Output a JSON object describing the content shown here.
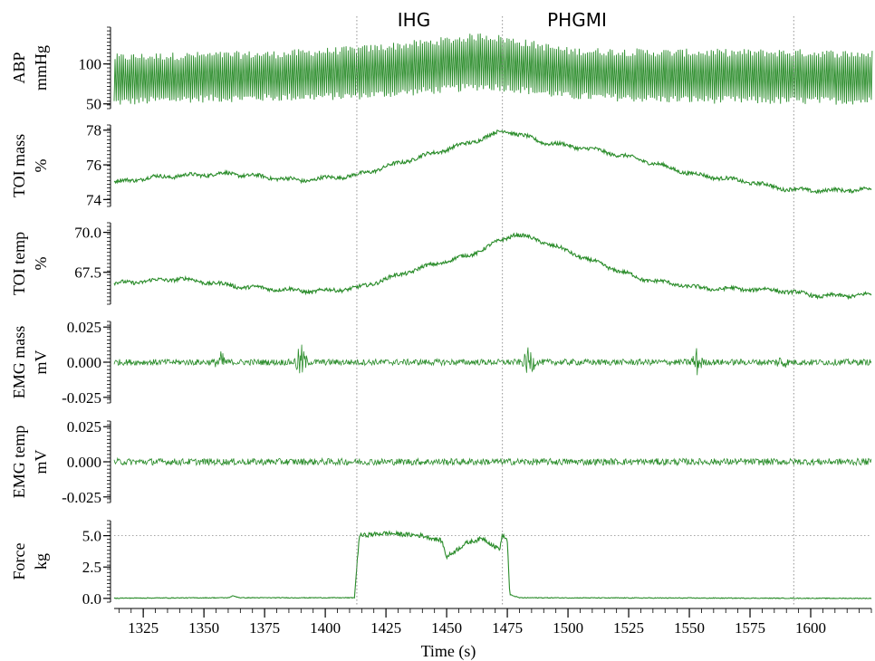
{
  "chart_data": {
    "type": "line",
    "series_color": "#2a8c2a",
    "x_axis": {
      "label": "Time (s)",
      "range": [
        1313,
        1625
      ],
      "tick_values": [
        1325,
        1350,
        1375,
        1400,
        1425,
        1450,
        1475,
        1500,
        1525,
        1550,
        1575,
        1600
      ]
    },
    "phase_markers": [
      {
        "label": "IHG",
        "x": 1413
      },
      {
        "label": "PHGMI",
        "x": 1473
      }
    ],
    "end_marker_x": 1593,
    "panels": [
      {
        "label_line1": "ABP",
        "label_line2": "mmHg",
        "y_range": [
          44,
          146
        ],
        "tick_labels": [
          "50",
          "100"
        ],
        "tick_values": [
          50,
          100
        ],
        "signal": "pulsatile",
        "keypoints": [
          [
            1313,
            52,
            108
          ],
          [
            1340,
            56,
            110
          ],
          [
            1380,
            58,
            112
          ],
          [
            1413,
            60,
            118
          ],
          [
            1440,
            66,
            126
          ],
          [
            1465,
            72,
            135
          ],
          [
            1475,
            70,
            130
          ],
          [
            1500,
            60,
            116
          ],
          [
            1540,
            56,
            114
          ],
          [
            1590,
            54,
            114
          ],
          [
            1625,
            54,
            112
          ]
        ]
      },
      {
        "label_line1": "TOI mass",
        "label_line2": "%",
        "y_range": [
          73.6,
          78.3
        ],
        "tick_labels": [
          "74",
          "76",
          "78"
        ],
        "tick_values": [
          74,
          76,
          78
        ],
        "signal": "slow",
        "keypoints": [
          [
            1313,
            75.0
          ],
          [
            1330,
            75.3
          ],
          [
            1360,
            75.5
          ],
          [
            1390,
            75.1
          ],
          [
            1413,
            75.4
          ],
          [
            1440,
            76.5
          ],
          [
            1460,
            77.3
          ],
          [
            1474,
            78.0
          ],
          [
            1490,
            77.3
          ],
          [
            1510,
            76.9
          ],
          [
            1530,
            76.3
          ],
          [
            1550,
            75.5
          ],
          [
            1575,
            75.0
          ],
          [
            1590,
            74.6
          ],
          [
            1605,
            74.5
          ],
          [
            1625,
            74.6
          ]
        ]
      },
      {
        "label_line1": "TOI temp",
        "label_line2": "%",
        "y_range": [
          65.5,
          70.6
        ],
        "tick_labels": [
          "67.5",
          "70.0"
        ],
        "tick_values": [
          67.5,
          70.0
        ],
        "signal": "slow",
        "keypoints": [
          [
            1313,
            66.8
          ],
          [
            1340,
            67.1
          ],
          [
            1365,
            66.6
          ],
          [
            1395,
            66.3
          ],
          [
            1413,
            66.5
          ],
          [
            1440,
            67.8
          ],
          [
            1460,
            68.6
          ],
          [
            1478,
            69.9
          ],
          [
            1490,
            69.4
          ],
          [
            1510,
            68.2
          ],
          [
            1530,
            67.1
          ],
          [
            1555,
            66.5
          ],
          [
            1585,
            66.4
          ],
          [
            1605,
            66.0
          ],
          [
            1625,
            66.1
          ]
        ]
      },
      {
        "label_line1": "EMG mass",
        "label_line2": "mV",
        "y_range": [
          -0.029,
          0.029
        ],
        "tick_labels": [
          "0.025",
          "0.000",
          "-0.025"
        ],
        "tick_values": [
          0.025,
          0.0,
          -0.025
        ],
        "signal": "noise",
        "noise_amp": 0.0022,
        "bursts": [
          [
            1357,
            0.006
          ],
          [
            1390,
            0.012
          ],
          [
            1484,
            0.01
          ],
          [
            1553,
            0.009
          ],
          [
            1588,
            0.004
          ]
        ]
      },
      {
        "label_line1": "EMG temp",
        "label_line2": "mV",
        "y_range": [
          -0.029,
          0.029
        ],
        "tick_labels": [
          "0.025",
          "0.000",
          "-0.025"
        ],
        "tick_values": [
          0.025,
          0.0,
          -0.025
        ],
        "signal": "noise",
        "noise_amp": 0.0024,
        "bursts": []
      },
      {
        "label_line1": "Force",
        "label_line2": "kg",
        "y_range": [
          -0.3,
          6.2
        ],
        "tick_labels": [
          "0.0",
          "2.5",
          "5.0"
        ],
        "tick_values": [
          0.0,
          2.5,
          5.0
        ],
        "signal": "force",
        "reference_line": 5.0,
        "keypoints": [
          [
            1313,
            0.02
          ],
          [
            1360,
            0.05
          ],
          [
            1362,
            0.2
          ],
          [
            1365,
            0.05
          ],
          [
            1412,
            0.05
          ],
          [
            1414,
            5.0
          ],
          [
            1425,
            5.2
          ],
          [
            1440,
            5.0
          ],
          [
            1448,
            4.6
          ],
          [
            1450,
            3.3
          ],
          [
            1458,
            4.4
          ],
          [
            1465,
            4.8
          ],
          [
            1470,
            4.1
          ],
          [
            1472,
            4.0
          ],
          [
            1473,
            5.1
          ],
          [
            1475,
            4.6
          ],
          [
            1476,
            0.3
          ],
          [
            1480,
            0.05
          ],
          [
            1625,
            0.0
          ]
        ]
      }
    ]
  }
}
